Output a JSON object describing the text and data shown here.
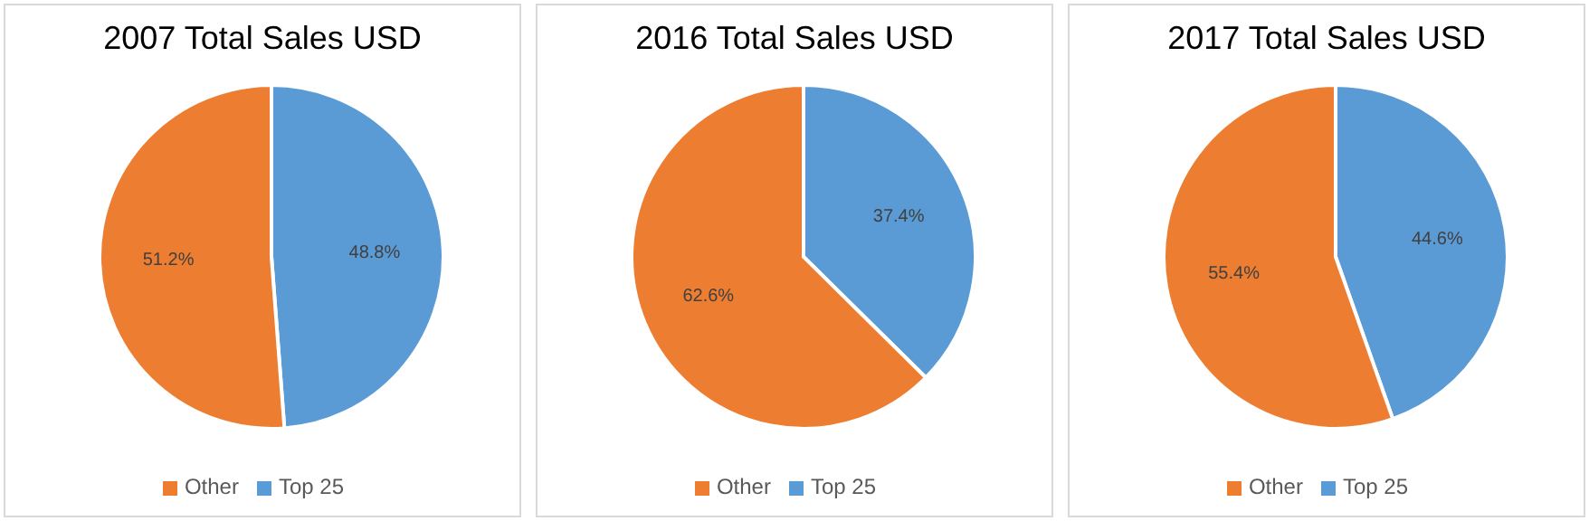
{
  "chart_data": [
    {
      "type": "pie",
      "title": "2007 Total Sales USD",
      "categories": [
        "Top 25",
        "Other"
      ],
      "values": [
        48.8,
        51.2
      ],
      "colors": [
        "#5b9bd5",
        "#ed7d31"
      ],
      "value_labels": [
        "48.8%",
        "51.2%"
      ],
      "legend": "bottom"
    },
    {
      "type": "pie",
      "title": "2016 Total Sales USD",
      "categories": [
        "Top 25",
        "Other"
      ],
      "values": [
        37.4,
        62.6
      ],
      "colors": [
        "#5b9bd5",
        "#ed7d31"
      ],
      "value_labels": [
        "37.4%",
        "62.6%"
      ],
      "legend": "bottom"
    },
    {
      "type": "pie",
      "title": "2017 Total Sales USD",
      "categories": [
        "Top 25",
        "Other"
      ],
      "values": [
        44.6,
        55.4
      ],
      "colors": [
        "#5b9bd5",
        "#ed7d31"
      ],
      "value_labels": [
        "44.6%",
        "55.4%"
      ],
      "legend": "bottom"
    }
  ]
}
